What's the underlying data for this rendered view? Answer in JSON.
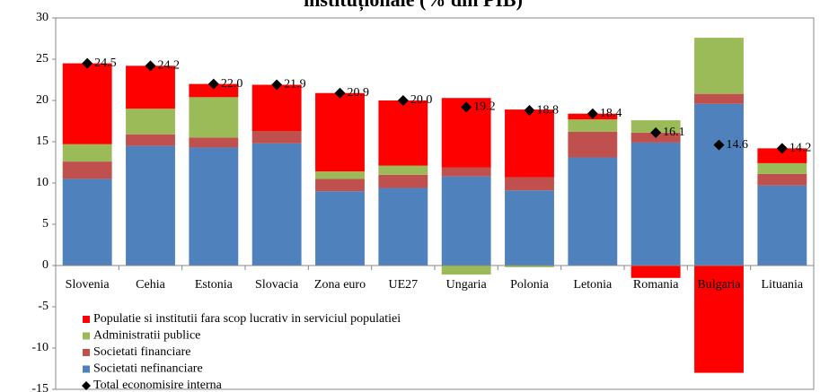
{
  "chart_data": {
    "type": "bar",
    "stacked": true,
    "title": "instituționale (% din PIB)",
    "categories": [
      "Slovenia",
      "Cehia",
      "Estonia",
      "Slovacia",
      "Zona euro",
      "UE27",
      "Ungaria",
      "Polonia",
      "Letonia",
      "Romania",
      "Bulgaria",
      "Lituania"
    ],
    "series": [
      {
        "name": "Societati nefinanciare",
        "color": "#4f81bd",
        "values": [
          10.5,
          14.5,
          14.3,
          14.8,
          9.0,
          9.4,
          10.8,
          9.1,
          13.1,
          14.9,
          19.6,
          9.7
        ]
      },
      {
        "name": "Societati financiare",
        "color": "#c0504d",
        "values": [
          2.1,
          1.4,
          1.2,
          1.5,
          1.5,
          1.6,
          1.1,
          1.6,
          3.1,
          1.2,
          1.2,
          1.4
        ]
      },
      {
        "name": "Administratii publice",
        "color": "#9bbb59",
        "values": [
          2.1,
          3.1,
          4.9,
          0,
          0.9,
          1.1,
          -1.1,
          -0.2,
          1.5,
          1.5,
          6.8,
          1.3
        ]
      },
      {
        "name": "Populatie si institutii fara scop lucrativ in serviciul populatiei",
        "color": "#ff0000",
        "values": [
          9.8,
          5.2,
          1.6,
          5.6,
          9.5,
          7.9,
          8.4,
          8.2,
          0.7,
          -1.5,
          -13.0,
          1.8
        ]
      }
    ],
    "totals": {
      "name": "Total economisire interna",
      "color": "#000000",
      "values": [
        24.5,
        24.2,
        22.0,
        21.9,
        20.9,
        20.0,
        19.2,
        18.8,
        18.4,
        16.1,
        14.6,
        14.2
      ],
      "value_labels": [
        "24.5",
        "24.2",
        "22.0",
        "21.9",
        "20.9",
        "20.0",
        "19.2",
        "18.8",
        "18.4",
        "16.1",
        "14.6",
        "14.2"
      ]
    },
    "ylim": [
      -15,
      30
    ],
    "yticks": [
      -15,
      -10,
      -5,
      0,
      5,
      10,
      15,
      20,
      25,
      30
    ],
    "grid": false
  }
}
